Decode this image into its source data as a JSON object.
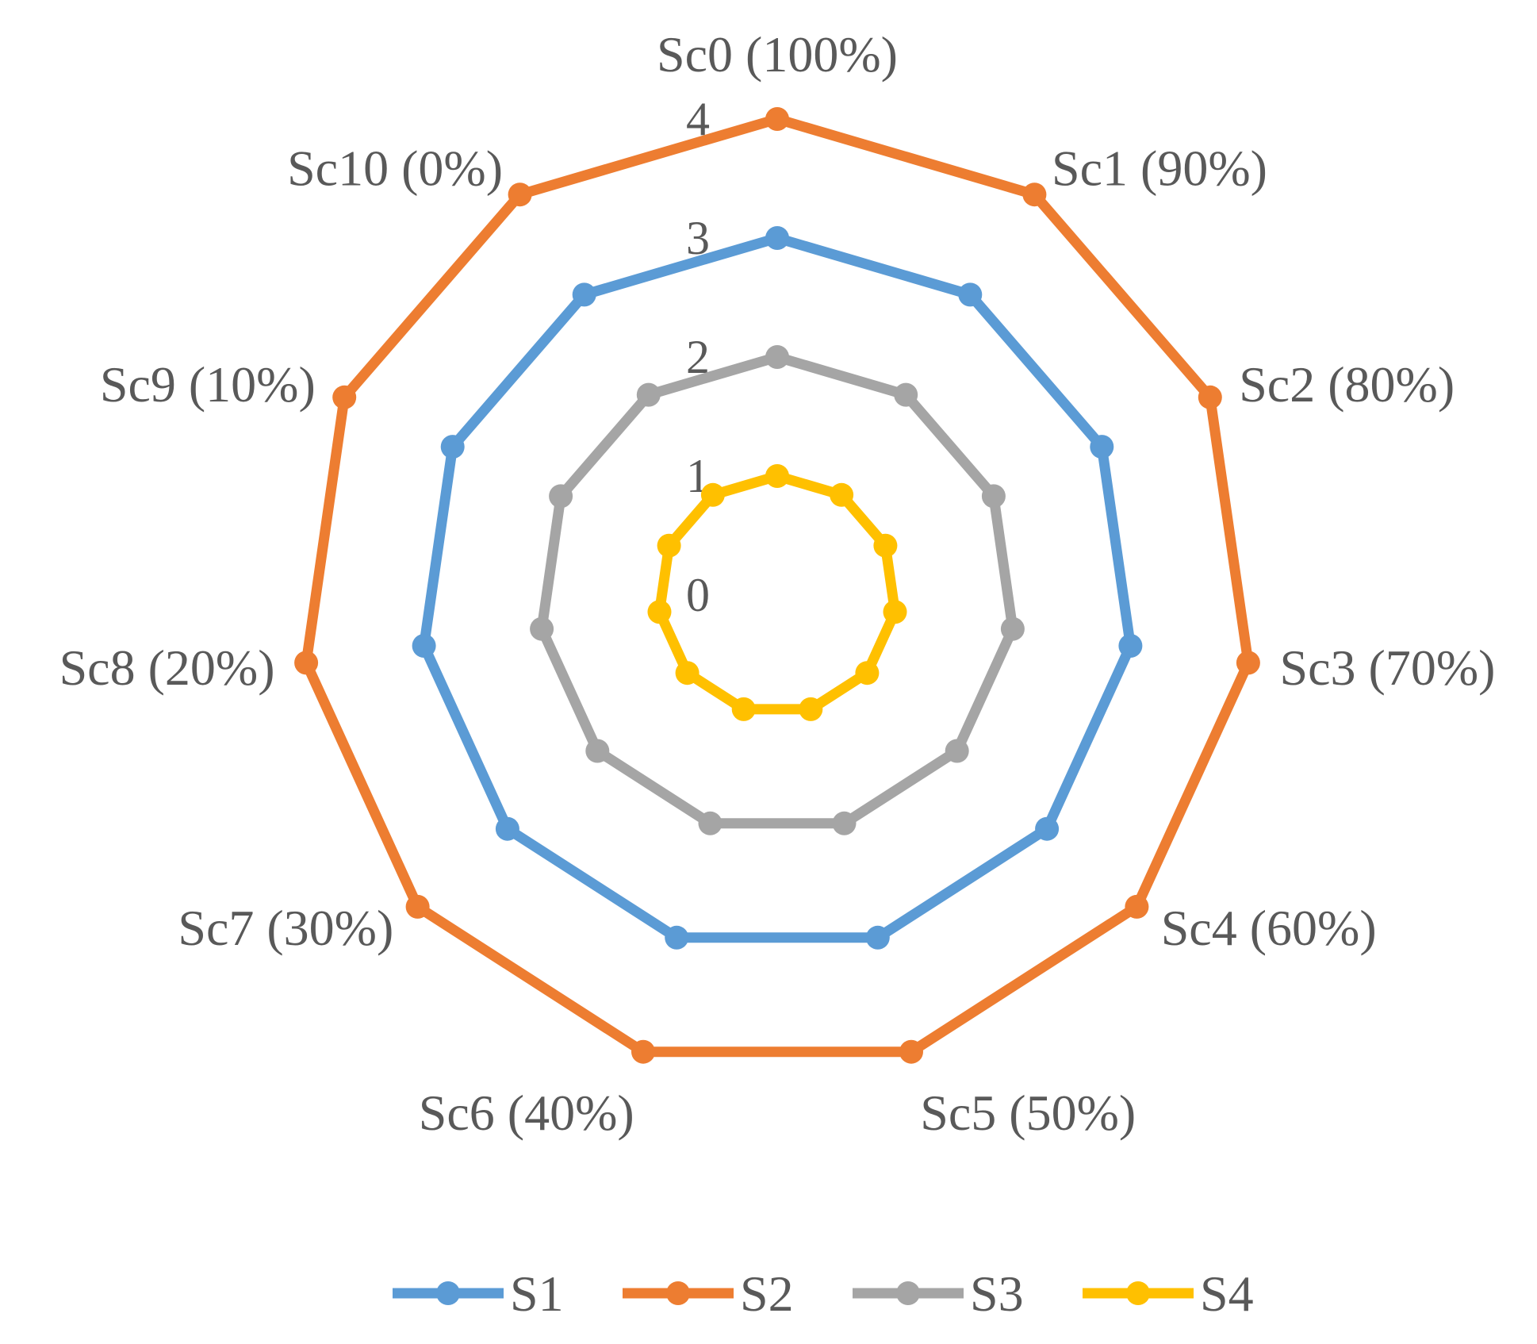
{
  "chart_data": {
    "type": "radar",
    "title": "",
    "categories": [
      "Sc0 (100%)",
      "Sc1 (90%)",
      "Sc2 (80%)",
      "Sc3 (70%)",
      "Sc4 (60%)",
      "Sc5 (50%)",
      "Sc6 (40%)",
      "Sc7 (30%)",
      "Sc8 (20%)",
      "Sc9 (10%)",
      "Sc10 (0%)"
    ],
    "radial_ticks": [
      "0",
      "1",
      "2",
      "3",
      "4"
    ],
    "rlim": [
      0,
      4
    ],
    "grid": false,
    "legend_position": "bottom",
    "series": [
      {
        "name": "S1",
        "color": "#5B9BD5",
        "values": [
          3,
          3,
          3,
          3,
          3,
          3,
          3,
          3,
          3,
          3,
          3
        ]
      },
      {
        "name": "S2",
        "color": "#ED7D31",
        "values": [
          4,
          4,
          4,
          4,
          4,
          4,
          4,
          4,
          4,
          4,
          4
        ]
      },
      {
        "name": "S3",
        "color": "#A5A5A5",
        "values": [
          2,
          2,
          2,
          2,
          2,
          2,
          2,
          2,
          2,
          2,
          2
        ]
      },
      {
        "name": "S4",
        "color": "#FFC000",
        "values": [
          1,
          1,
          1,
          1,
          1,
          1,
          1,
          1,
          1,
          1,
          1
        ]
      }
    ]
  }
}
